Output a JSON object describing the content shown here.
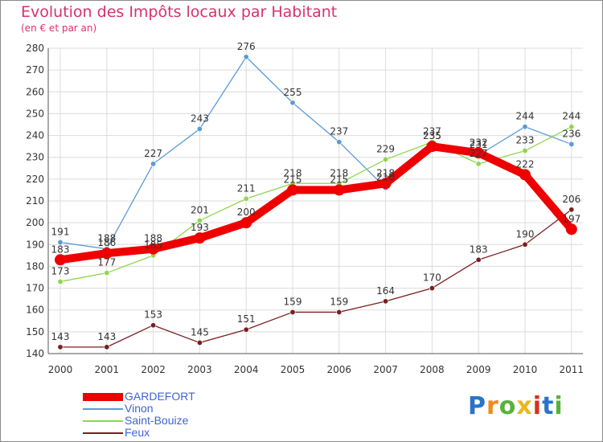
{
  "title": "Evolution des Impôts locaux par Habitant",
  "subtitle": "(en € et par an)",
  "brand": {
    "text": "Proxiti",
    "colors": [
      "#2a73c9",
      "#f08a1c",
      "#58b23a",
      "#e8b820",
      "#d8311e",
      "#2a73c9",
      "#58b23a"
    ]
  },
  "chart_data": {
    "type": "line",
    "x": [
      "2000",
      "2001",
      "2002",
      "2003",
      "2004",
      "2005",
      "2006",
      "2007",
      "2008",
      "2009",
      "2010",
      "2011"
    ],
    "ylim": [
      140,
      280
    ],
    "yticks": [
      140,
      150,
      160,
      170,
      180,
      190,
      200,
      210,
      220,
      230,
      240,
      250,
      260,
      270,
      280
    ],
    "grid": true,
    "legend": "bottom-left",
    "series": [
      {
        "name": "Vinon",
        "color": "#5b9bd5",
        "values": [
          191,
          188,
          227,
          243,
          276,
          255,
          237,
          216,
          235,
          231,
          244,
          236
        ]
      },
      {
        "name": "Saint-Bouize",
        "color": "#8fd64e",
        "values": [
          173,
          177,
          185,
          201,
          211,
          218,
          218,
          229,
          237,
          227,
          233,
          244
        ]
      },
      {
        "name": "Feux",
        "color": "#7a1f1f",
        "values": [
          143,
          143,
          153,
          145,
          151,
          159,
          159,
          164,
          170,
          183,
          190,
          206
        ]
      },
      {
        "name": "GARDEFORT",
        "color": "#ee0000",
        "values": [
          183,
          186,
          188,
          193,
          200,
          215,
          215,
          218,
          235,
          232,
          222,
          197
        ]
      }
    ],
    "legend_order": [
      "GARDEFORT",
      "Vinon",
      "Saint-Bouize",
      "Feux"
    ]
  }
}
